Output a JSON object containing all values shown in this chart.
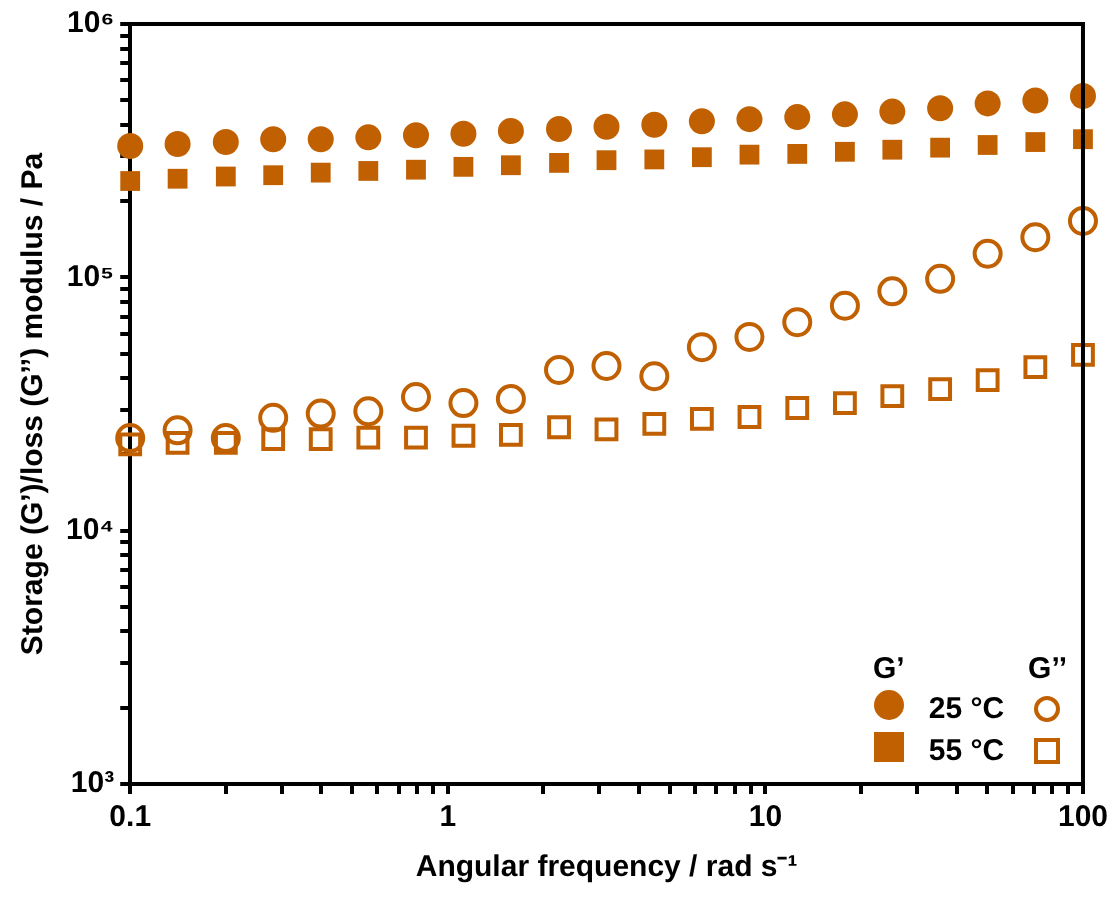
{
  "chart_data": {
    "type": "scatter",
    "xlabel": "Angular frequency / rad s⁻¹",
    "ylabel": "Storage (G’)/loss (G’’) modulus / Pa",
    "log": "xy",
    "grid": false,
    "legend": "bottom right",
    "annotations": [
      "G’",
      "G’’"
    ],
    "x": [
      0.1,
      0.141,
      0.2,
      0.282,
      0.398,
      0.562,
      0.794,
      1.12,
      1.58,
      2.24,
      3.16,
      4.47,
      6.31,
      8.91,
      12.6,
      17.8,
      25.1,
      35.5,
      50.1,
      70.8,
      100
    ],
    "xlim": [
      0.1,
      100
    ],
    "xticks": [
      0.1,
      {
        "value": 0.2,
        "label": null
      },
      {
        "value": 0.3,
        "label": null
      },
      {
        "value": 0.4,
        "label": null
      },
      {
        "value": 0.5,
        "label": null
      },
      {
        "value": 0.6,
        "label": null
      },
      {
        "value": 0.7,
        "label": null
      },
      {
        "value": 0.8,
        "label": null
      },
      {
        "value": 0.9,
        "label": null
      },
      1,
      {
        "value": 2,
        "label": null
      },
      {
        "value": 3,
        "label": null
      },
      {
        "value": 4,
        "label": null
      },
      {
        "value": 5,
        "label": null
      },
      {
        "value": 6,
        "label": null
      },
      {
        "value": 7,
        "label": null
      },
      {
        "value": 8,
        "label": null
      },
      {
        "value": 9,
        "label": null
      },
      10,
      {
        "value": 20,
        "label": null
      },
      {
        "value": 30,
        "label": null
      },
      {
        "value": 40,
        "label": null
      },
      {
        "value": 50,
        "label": null
      },
      {
        "value": 60,
        "label": null
      },
      {
        "value": 70,
        "label": null
      },
      {
        "value": 80,
        "label": null
      },
      {
        "value": 90,
        "label": null
      },
      100
    ],
    "ylim": [
      1000,
      1000000
    ],
    "yticks": [
      {
        "value": 1000,
        "label": "10³"
      },
      {
        "value": 2000,
        "label": null
      },
      {
        "value": 3000,
        "label": null
      },
      {
        "value": 4000,
        "label": null
      },
      {
        "value": 5000,
        "label": null
      },
      {
        "value": 6000,
        "label": null
      },
      {
        "value": 7000,
        "label": null
      },
      {
        "value": 8000,
        "label": null
      },
      {
        "value": 9000,
        "label": null
      },
      {
        "value": 10000,
        "label": "10⁴"
      },
      {
        "value": 20000,
        "label": null
      },
      {
        "value": 30000,
        "label": null
      },
      {
        "value": 40000,
        "label": null
      },
      {
        "value": 50000,
        "label": null
      },
      {
        "value": 60000,
        "label": null
      },
      {
        "value": 70000,
        "label": null
      },
      {
        "value": 80000,
        "label": null
      },
      {
        "value": 90000,
        "label": null
      },
      {
        "value": 100000,
        "label": "10⁵"
      },
      {
        "value": 200000,
        "label": null
      },
      {
        "value": 300000,
        "label": null
      },
      {
        "value": 400000,
        "label": null
      },
      {
        "value": 500000,
        "label": null
      },
      {
        "value": 600000,
        "label": null
      },
      {
        "value": 700000,
        "label": null
      },
      {
        "value": 800000,
        "label": null
      },
      {
        "value": 900000,
        "label": null
      },
      {
        "value": 1000000,
        "label": "10⁶"
      }
    ],
    "series": [
      {
        "name": "25 °C",
        "color": "#c06000",
        "marker": "circle",
        "values": [
          330000,
          336000,
          342000,
          351000,
          351000,
          357000,
          364000,
          369000,
          378000,
          385000,
          393000,
          400000,
          413000,
          421000,
          429000,
          440000,
          451000,
          465000,
          486000,
          499000,
          520000
        ]
      },
      {
        "name": "55 °C",
        "color": "#c06000",
        "marker": "square",
        "values": [
          240000,
          245000,
          250000,
          253000,
          259000,
          263000,
          266000,
          273000,
          277000,
          283000,
          290000,
          292000,
          298000,
          305000,
          307000,
          313000,
          319000,
          325000,
          333000,
          342000,
          351000
        ]
      },
      {
        "color": "#c06000",
        "marker": "circle",
        "values": [
          23200,
          24900,
          23200,
          27900,
          29000,
          29600,
          33700,
          31900,
          33100,
          43100,
          44700,
          40700,
          53000,
          58200,
          66500,
          77300,
          88100,
          98700,
          124000,
          144000,
          167000
        ]
      },
      {
        "color": "#c06000",
        "marker": "square",
        "values": [
          21900,
          22200,
          22200,
          23000,
          23000,
          23300,
          23300,
          23700,
          23900,
          25600,
          25100,
          26400,
          27600,
          28100,
          30500,
          31900,
          34000,
          36200,
          39300,
          44200,
          49400
        ]
      }
    ]
  }
}
